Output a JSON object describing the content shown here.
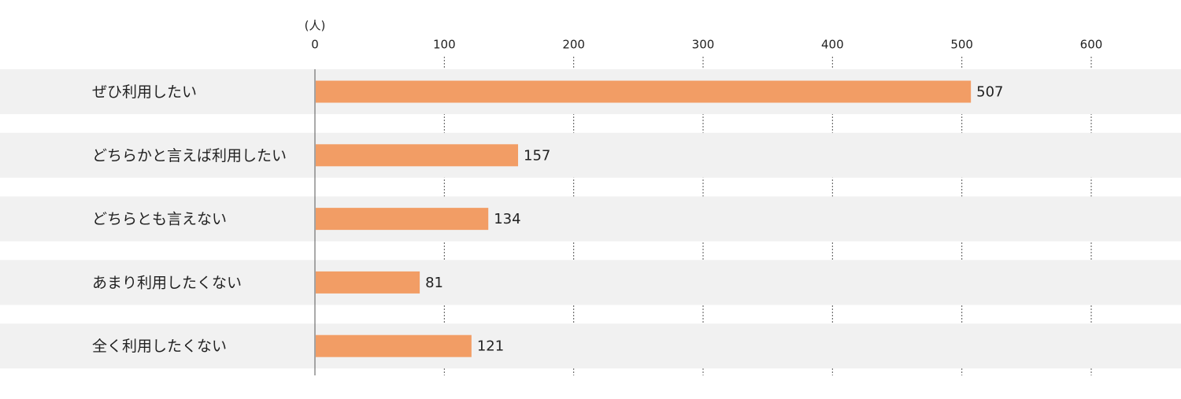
{
  "chart_data": {
    "type": "bar",
    "orientation": "horizontal",
    "x_axis_label": "(人)",
    "categories": [
      "ぜひ利用したい",
      "どちらかと言えば利用したい",
      "どちらとも言えない",
      "あまり利用したくない",
      "全く利用したくない"
    ],
    "values": [
      507,
      157,
      134,
      81,
      121
    ],
    "color": "#f29d65",
    "band_color": "#f1f1f1",
    "xlim": [
      0,
      600
    ],
    "xticks": [
      0,
      100,
      200,
      300,
      400,
      500,
      600
    ],
    "grid": true
  }
}
